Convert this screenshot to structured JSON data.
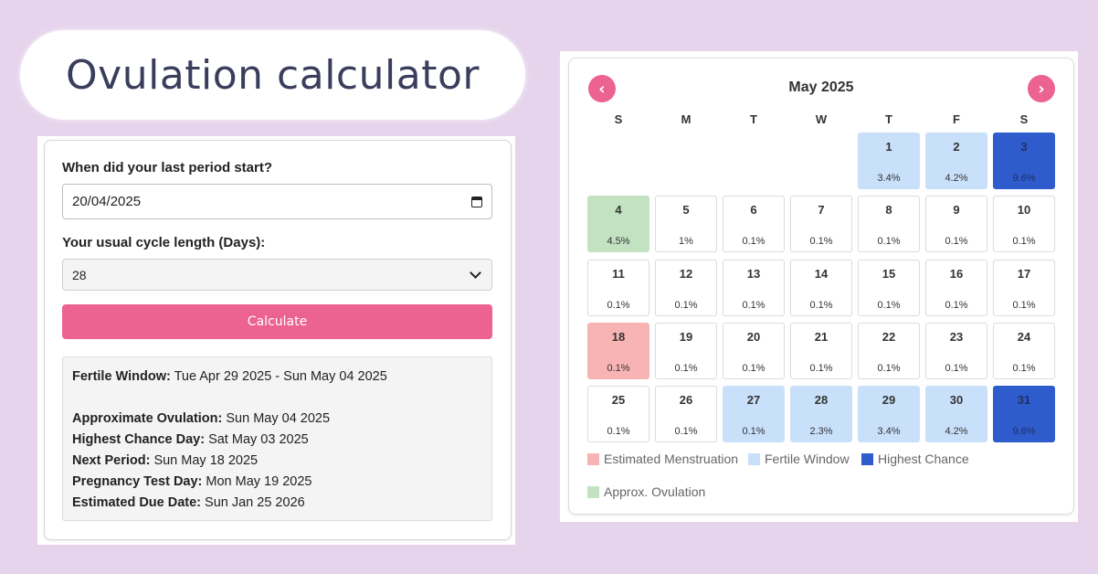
{
  "title": "Ovulation calculator",
  "form": {
    "period_label": "When did your last period start?",
    "period_value": "20/04/2025",
    "cycle_label": "Your usual cycle length (Days):",
    "cycle_value": "28",
    "calculate_label": "Calculate"
  },
  "results": [
    {
      "label": "Fertile Window:",
      "value": " Tue Apr 29 2025 - Sun May 04 2025"
    },
    {
      "label": "Approximate Ovulation:",
      "value": " Sun May 04 2025"
    },
    {
      "label": "Highest Chance Day:",
      "value": " Sat May 03 2025"
    },
    {
      "label": "Next Period:",
      "value": " Sun May 18 2025"
    },
    {
      "label": "Pregnancy Test Day:",
      "value": " Mon May 19 2025"
    },
    {
      "label": "Estimated Due Date:",
      "value": " Sun Jan 25 2026"
    }
  ],
  "calendar": {
    "month": "May 2025",
    "prev_icon": "chevron-left-icon",
    "next_icon": "chevron-right-icon",
    "weekdays": [
      "S",
      "M",
      "T",
      "W",
      "T",
      "F",
      "S"
    ],
    "leading_blanks": 4,
    "days": [
      {
        "day": "1",
        "pct": "3.4%",
        "type": "fertile"
      },
      {
        "day": "2",
        "pct": "4.2%",
        "type": "fertile"
      },
      {
        "day": "3",
        "pct": "9.6%",
        "type": "high"
      },
      {
        "day": "4",
        "pct": "4.5%",
        "type": "ovul"
      },
      {
        "day": "5",
        "pct": "1%",
        "type": ""
      },
      {
        "day": "6",
        "pct": "0.1%",
        "type": ""
      },
      {
        "day": "7",
        "pct": "0.1%",
        "type": ""
      },
      {
        "day": "8",
        "pct": "0.1%",
        "type": ""
      },
      {
        "day": "9",
        "pct": "0.1%",
        "type": ""
      },
      {
        "day": "10",
        "pct": "0.1%",
        "type": ""
      },
      {
        "day": "11",
        "pct": "0.1%",
        "type": ""
      },
      {
        "day": "12",
        "pct": "0.1%",
        "type": ""
      },
      {
        "day": "13",
        "pct": "0.1%",
        "type": ""
      },
      {
        "day": "14",
        "pct": "0.1%",
        "type": ""
      },
      {
        "day": "15",
        "pct": "0.1%",
        "type": ""
      },
      {
        "day": "16",
        "pct": "0.1%",
        "type": ""
      },
      {
        "day": "17",
        "pct": "0.1%",
        "type": ""
      },
      {
        "day": "18",
        "pct": "0.1%",
        "type": "mens"
      },
      {
        "day": "19",
        "pct": "0.1%",
        "type": ""
      },
      {
        "day": "20",
        "pct": "0.1%",
        "type": ""
      },
      {
        "day": "21",
        "pct": "0.1%",
        "type": ""
      },
      {
        "day": "22",
        "pct": "0.1%",
        "type": ""
      },
      {
        "day": "23",
        "pct": "0.1%",
        "type": ""
      },
      {
        "day": "24",
        "pct": "0.1%",
        "type": ""
      },
      {
        "day": "25",
        "pct": "0.1%",
        "type": ""
      },
      {
        "day": "26",
        "pct": "0.1%",
        "type": ""
      },
      {
        "day": "27",
        "pct": "0.1%",
        "type": "fertile"
      },
      {
        "day": "28",
        "pct": "2.3%",
        "type": "fertile"
      },
      {
        "day": "29",
        "pct": "3.4%",
        "type": "fertile"
      },
      {
        "day": "30",
        "pct": "4.2%",
        "type": "fertile"
      },
      {
        "day": "31",
        "pct": "9.6%",
        "type": "high"
      }
    ],
    "legend": [
      {
        "label": "Estimated Menstruation",
        "color": "#f8b4b4"
      },
      {
        "label": "Fertile Window",
        "color": "#c9e0fb"
      },
      {
        "label": "Highest Chance",
        "color": "#2f5ccd"
      },
      {
        "label": "Approx. Ovulation",
        "color": "#c2e2c2"
      }
    ]
  },
  "colors": {
    "accent": "#ec6290",
    "background": "#e6d4ec"
  }
}
